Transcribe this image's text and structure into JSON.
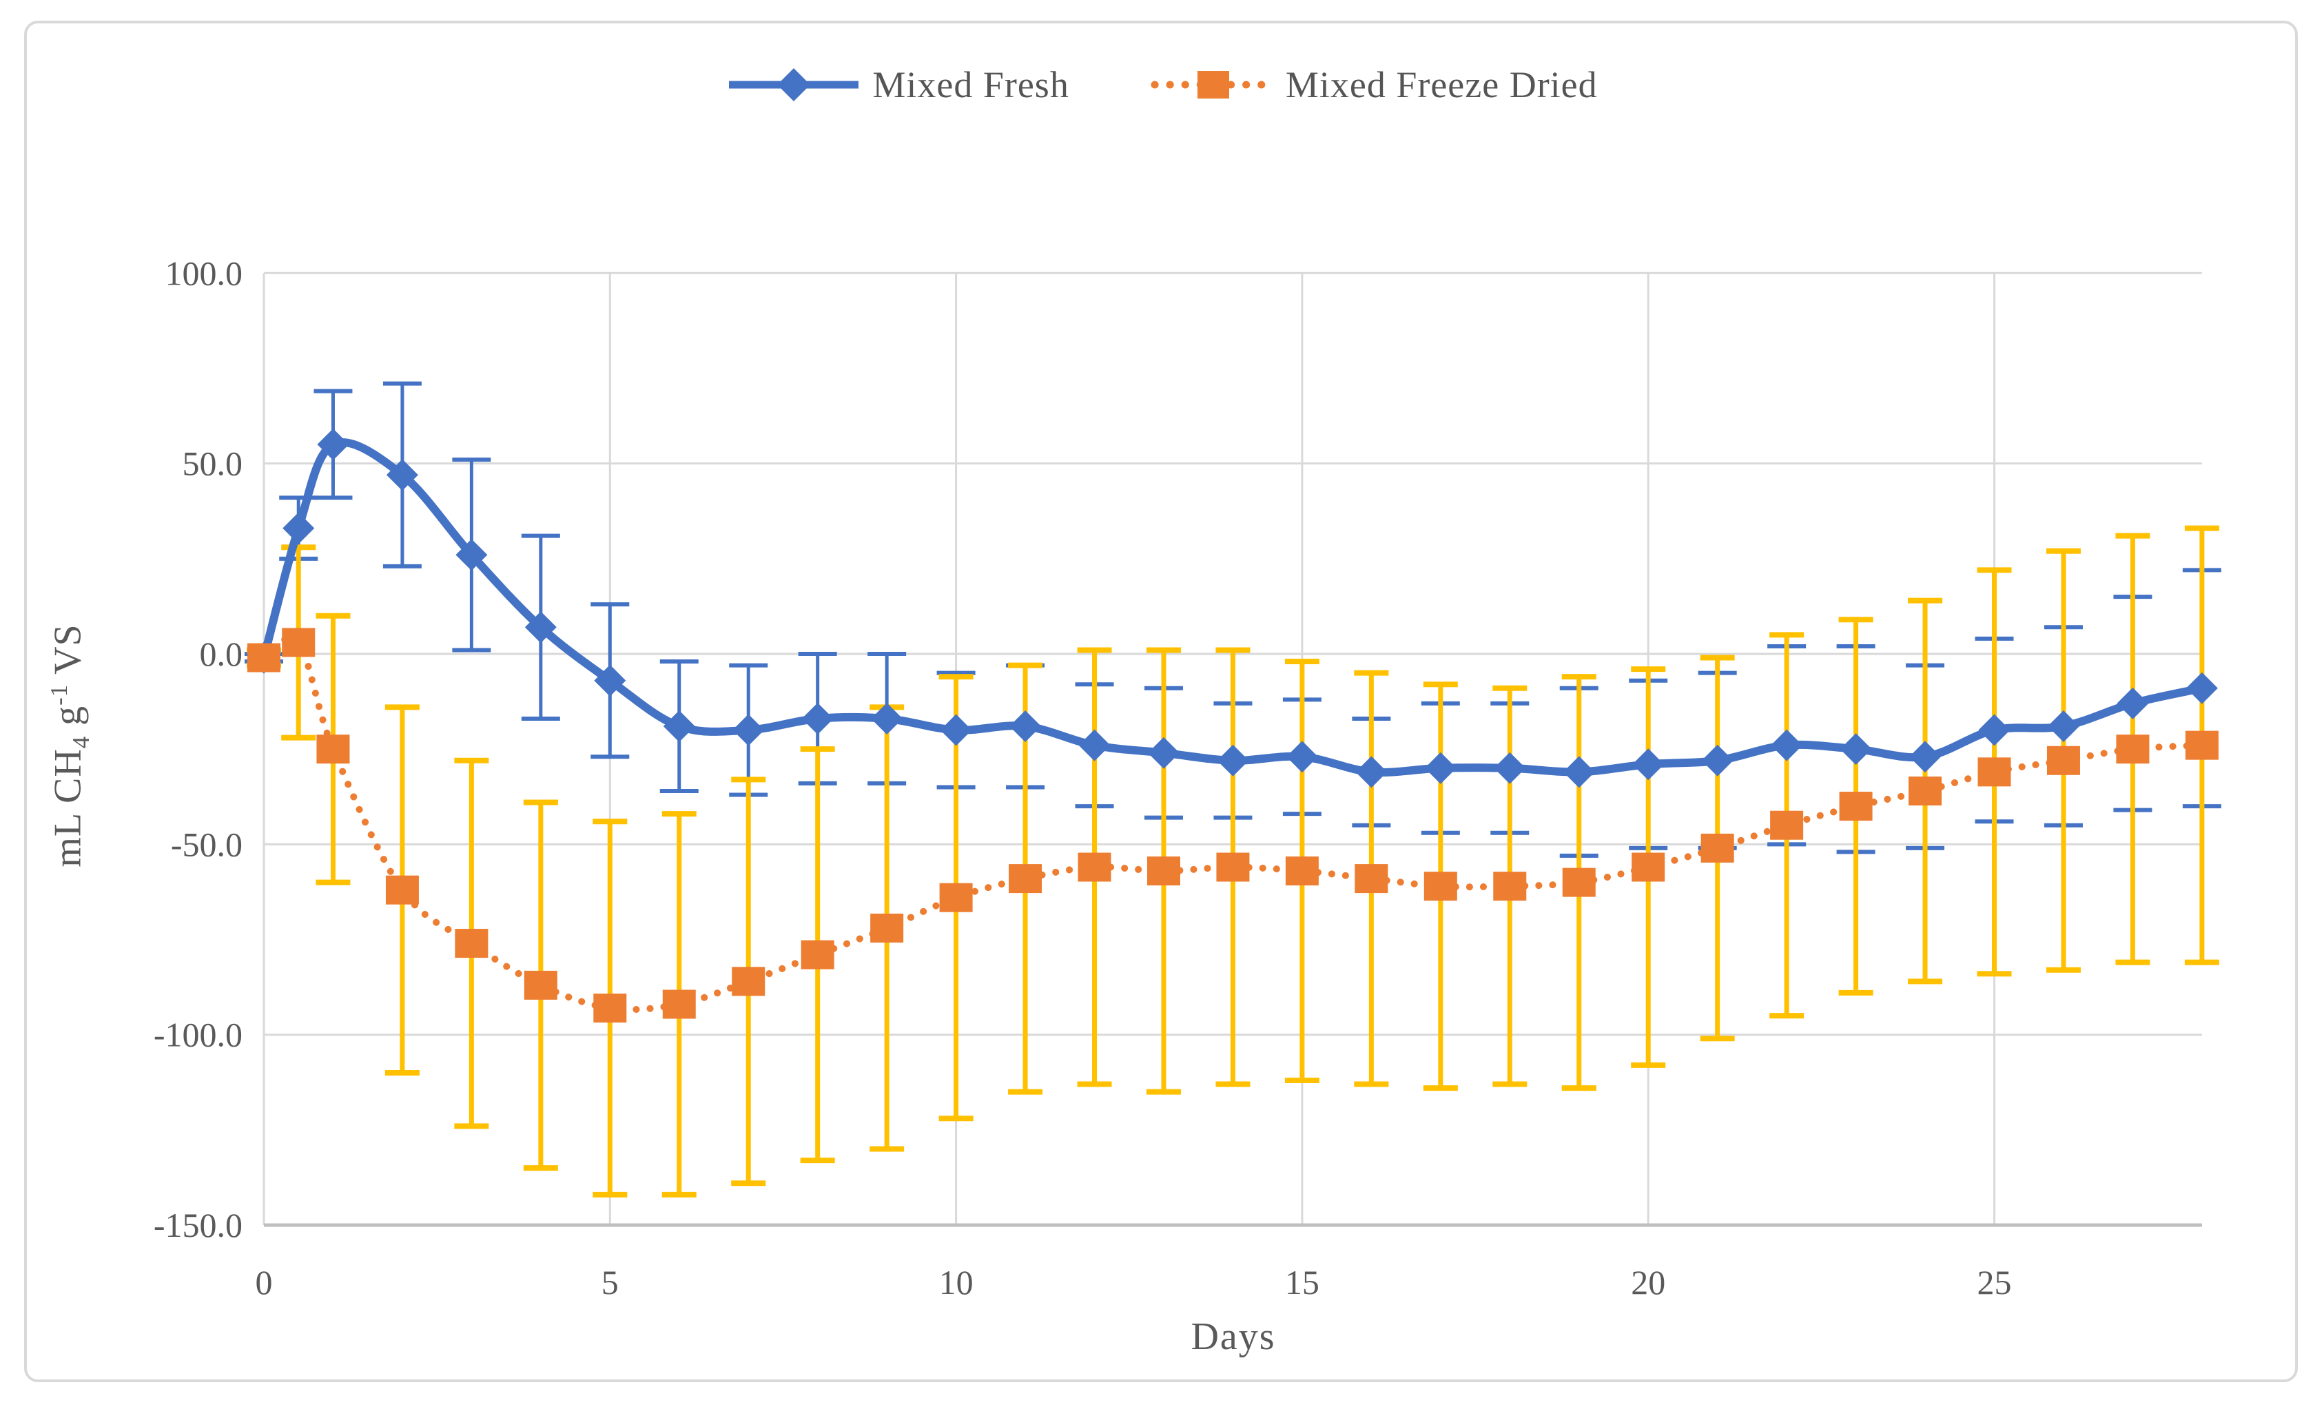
{
  "chart_data": {
    "type": "line",
    "title": "",
    "xlabel": "Days",
    "ylabel": "mL CH4 g-1 VS",
    "ylabel_parts": {
      "prefix": "mL CH",
      "sub": "4",
      "mid": " g",
      "sup": "-1",
      "suffix": " VS"
    },
    "x": [
      0,
      0.5,
      1,
      2,
      3,
      4,
      5,
      6,
      7,
      8,
      9,
      10,
      11,
      12,
      13,
      14,
      15,
      16,
      17,
      18,
      19,
      20,
      21,
      22,
      23,
      24,
      25,
      26,
      27,
      28
    ],
    "series": [
      {
        "name": "Mixed Fresh",
        "color": "#4472C4",
        "marker": "diamond",
        "line_style": "solid-smooth",
        "error_color": "#4472C4",
        "values": [
          -1,
          33,
          55,
          47,
          26,
          7,
          -7,
          -19,
          -20,
          -17,
          -17,
          -20,
          -19,
          -24,
          -26,
          -28,
          -27,
          -31,
          -30,
          -30,
          -31,
          -29,
          -28,
          -24,
          -25,
          -27,
          -20,
          -19,
          -13,
          -9
        ],
        "error": [
          1,
          8,
          14,
          24,
          25,
          24,
          20,
          17,
          17,
          17,
          17,
          15,
          16,
          16,
          17,
          15,
          15,
          14,
          17,
          17,
          22,
          22,
          23,
          26,
          27,
          24,
          24,
          26,
          28,
          31
        ]
      },
      {
        "name": "Mixed Freeze Dried",
        "color": "#ED7D31",
        "marker": "square",
        "line_style": "dotted",
        "error_color": "#FFC000",
        "values": [
          -1,
          3,
          -25,
          -62,
          -76,
          -87,
          -93,
          -92,
          -86,
          -79,
          -72,
          -64,
          -59,
          -56,
          -57,
          -56,
          -57,
          -59,
          -61,
          -61,
          -60,
          -56,
          -51,
          -45,
          -40,
          -36,
          -31,
          -28,
          -25,
          -24
        ],
        "error": [
          2,
          25,
          35,
          48,
          48,
          48,
          49,
          50,
          53,
          54,
          58,
          58,
          56,
          57,
          58,
          57,
          55,
          54,
          53,
          52,
          54,
          52,
          50,
          50,
          49,
          50,
          53,
          55,
          56,
          57
        ]
      }
    ],
    "x_ticks": [
      0,
      5,
      10,
      15,
      20,
      25
    ],
    "y_ticks": [
      "100.0",
      "50.0",
      "0.0",
      "-50.0",
      "-100.0",
      "-150.0"
    ],
    "y_tick_values": [
      100,
      50,
      0,
      -50,
      -100,
      -150
    ],
    "xlim": [
      0,
      28
    ],
    "ylim": [
      -150,
      100
    ],
    "grid": true,
    "legend_position": "top-center",
    "colors": {
      "gridline": "#D9D9D9",
      "axis_line": "#BFBFBF",
      "text": "#595959",
      "background": "#FFFFFF",
      "frame_border": "#D9D9D9"
    }
  }
}
